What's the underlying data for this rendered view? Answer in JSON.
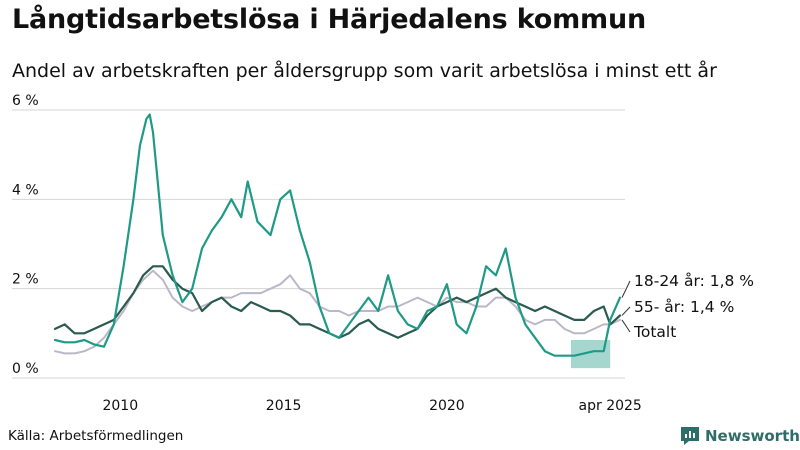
{
  "title": "Långtidsarbetslösa i Härjedalens kommun",
  "subtitle": "Andel av arbetskraften per åldersgrupp som varit arbetslösa i minst ett år",
  "source": "Källa: Arbetsförmedlingen",
  "brand": "Newsworthy",
  "colors": {
    "age_18_24": "#1f9a86",
    "age_55": "#2b5a4e",
    "total": "#bcb7c8",
    "band": "#1f9a86",
    "grid": "#d4d4d4",
    "brand": "#2d6e68"
  },
  "chart_data": {
    "type": "line",
    "ylim": [
      0,
      6
    ],
    "xlim": [
      2008.0,
      2025.3
    ],
    "yticks": [
      {
        "value": 0,
        "label": "0 %"
      },
      {
        "value": 2,
        "label": "2 %"
      },
      {
        "value": 4,
        "label": "4 %"
      },
      {
        "value": 6,
        "label": "6 %"
      }
    ],
    "xticks": [
      {
        "value": 2010,
        "label": "2010"
      },
      {
        "value": 2015,
        "label": "2015"
      },
      {
        "value": 2020,
        "label": "2020"
      },
      {
        "value": 2025,
        "label": "apr 2025"
      }
    ],
    "grid": "horizontal",
    "end_labels": {
      "age_18_24": "18-24 år: 1,8 %",
      "age_55": "55- år: 1,4 %",
      "total": "Totalt"
    },
    "series": [
      {
        "key": "total",
        "x": [
          2008.0,
          2008.3,
          2008.6,
          2008.9,
          2009.2,
          2009.5,
          2009.8,
          2010.1,
          2010.4,
          2010.7,
          2011.0,
          2011.3,
          2011.6,
          2011.9,
          2012.2,
          2012.5,
          2012.8,
          2013.1,
          2013.4,
          2013.7,
          2014.0,
          2014.3,
          2014.6,
          2014.9,
          2015.2,
          2015.5,
          2015.8,
          2016.1,
          2016.4,
          2016.7,
          2017.0,
          2017.3,
          2017.6,
          2017.9,
          2018.2,
          2018.5,
          2018.8,
          2019.1,
          2019.4,
          2019.7,
          2020.0,
          2020.3,
          2020.6,
          2020.9,
          2021.2,
          2021.5,
          2021.8,
          2022.1,
          2022.4,
          2022.7,
          2023.0,
          2023.3,
          2023.6,
          2023.9,
          2024.2,
          2024.5,
          2024.8,
          2025.0,
          2025.3
        ],
        "y": [
          0.6,
          0.55,
          0.55,
          0.6,
          0.7,
          0.9,
          1.2,
          1.5,
          1.9,
          2.2,
          2.4,
          2.2,
          1.8,
          1.6,
          1.5,
          1.6,
          1.7,
          1.8,
          1.8,
          1.9,
          1.9,
          1.9,
          2.0,
          2.1,
          2.3,
          2.0,
          1.9,
          1.6,
          1.5,
          1.5,
          1.4,
          1.5,
          1.5,
          1.5,
          1.6,
          1.6,
          1.7,
          1.8,
          1.7,
          1.6,
          1.8,
          1.7,
          1.7,
          1.6,
          1.6,
          1.8,
          1.8,
          1.6,
          1.3,
          1.2,
          1.3,
          1.3,
          1.1,
          1.0,
          1.0,
          1.1,
          1.2,
          1.2,
          1.3
        ]
      },
      {
        "key": "age_55",
        "x": [
          2008.0,
          2008.3,
          2008.6,
          2008.9,
          2009.2,
          2009.5,
          2009.8,
          2010.1,
          2010.4,
          2010.7,
          2011.0,
          2011.3,
          2011.6,
          2011.9,
          2012.2,
          2012.5,
          2012.8,
          2013.1,
          2013.4,
          2013.7,
          2014.0,
          2014.3,
          2014.6,
          2014.9,
          2015.2,
          2015.5,
          2015.8,
          2016.1,
          2016.4,
          2016.7,
          2017.0,
          2017.3,
          2017.6,
          2017.9,
          2018.2,
          2018.5,
          2018.8,
          2019.1,
          2019.4,
          2019.7,
          2020.0,
          2020.3,
          2020.6,
          2020.9,
          2021.2,
          2021.5,
          2021.8,
          2022.1,
          2022.4,
          2022.7,
          2023.0,
          2023.3,
          2023.6,
          2023.9,
          2024.2,
          2024.5,
          2024.8,
          2025.0,
          2025.3
        ],
        "y": [
          1.1,
          1.2,
          1.0,
          1.0,
          1.1,
          1.2,
          1.3,
          1.6,
          1.9,
          2.3,
          2.5,
          2.5,
          2.2,
          2.0,
          1.9,
          1.5,
          1.7,
          1.8,
          1.6,
          1.5,
          1.7,
          1.6,
          1.5,
          1.5,
          1.4,
          1.2,
          1.2,
          1.1,
          1.0,
          0.9,
          1.0,
          1.2,
          1.3,
          1.1,
          1.0,
          0.9,
          1.0,
          1.1,
          1.4,
          1.6,
          1.7,
          1.8,
          1.7,
          1.8,
          1.9,
          2.0,
          1.8,
          1.7,
          1.6,
          1.5,
          1.6,
          1.5,
          1.4,
          1.3,
          1.3,
          1.5,
          1.6,
          1.2,
          1.4
        ]
      },
      {
        "key": "age_18_24",
        "x": [
          2008.0,
          2008.3,
          2008.6,
          2008.9,
          2009.2,
          2009.5,
          2009.8,
          2010.1,
          2010.4,
          2010.6,
          2010.8,
          2010.9,
          2011.0,
          2011.3,
          2011.6,
          2011.9,
          2012.2,
          2012.5,
          2012.8,
          2013.1,
          2013.4,
          2013.7,
          2013.9,
          2014.2,
          2014.6,
          2014.9,
          2015.2,
          2015.5,
          2015.8,
          2016.1,
          2016.4,
          2016.7,
          2017.0,
          2017.3,
          2017.6,
          2017.9,
          2018.2,
          2018.5,
          2018.8,
          2019.1,
          2019.4,
          2019.7,
          2020.0,
          2020.3,
          2020.6,
          2020.9,
          2021.2,
          2021.5,
          2021.8,
          2022.1,
          2022.4,
          2022.7,
          2023.0,
          2023.3,
          2023.6,
          2023.9,
          2024.2,
          2024.5,
          2024.8,
          2025.0,
          2025.3
        ],
        "y": [
          0.85,
          0.8,
          0.8,
          0.85,
          0.75,
          0.7,
          1.2,
          2.5,
          4.0,
          5.2,
          5.8,
          5.9,
          5.5,
          3.2,
          2.3,
          1.7,
          2.0,
          2.9,
          3.3,
          3.6,
          4.0,
          3.6,
          4.4,
          3.5,
          3.2,
          4.0,
          4.2,
          3.3,
          2.6,
          1.6,
          1.0,
          0.9,
          1.2,
          1.5,
          1.8,
          1.5,
          2.3,
          1.5,
          1.2,
          1.1,
          1.5,
          1.6,
          2.1,
          1.2,
          1.0,
          1.6,
          2.5,
          2.3,
          2.9,
          1.8,
          1.2,
          0.9,
          0.6,
          0.5,
          0.5,
          0.5,
          0.55,
          0.6,
          0.6,
          1.3,
          1.8
        ]
      }
    ],
    "band": {
      "key": "age_18_24",
      "x": [
        2023.8,
        2025.0
      ],
      "upper": [
        0.85,
        0.85
      ],
      "lower": [
        0.22,
        0.22
      ]
    }
  }
}
